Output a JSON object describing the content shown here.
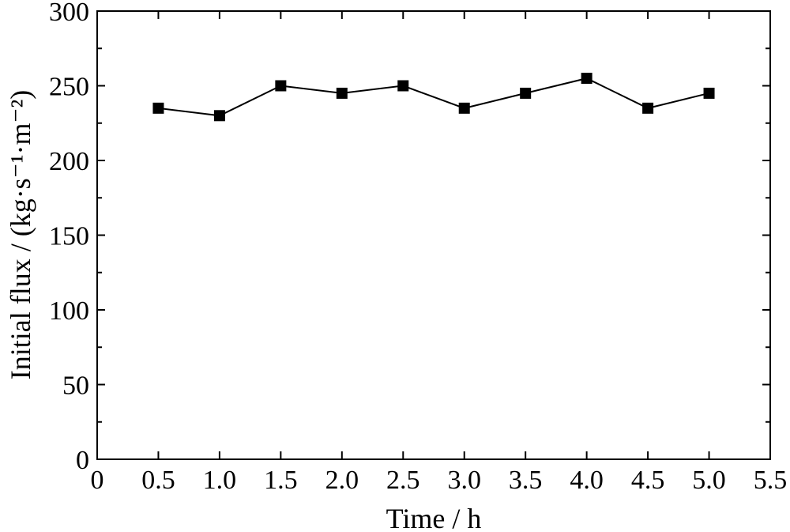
{
  "chart_data": {
    "type": "line",
    "xlabel": "Time / h",
    "ylabel": "Initial flux / (kg·s⁻¹·m⁻²)",
    "xlim": [
      0,
      5.5
    ],
    "ylim": [
      0,
      300
    ],
    "x_ticks": [
      "0",
      "0.5",
      "1.0",
      "1.5",
      "2.0",
      "2.5",
      "3.0",
      "3.5",
      "4.0",
      "4.5",
      "5.0",
      "5.5"
    ],
    "y_ticks": [
      "0",
      "50",
      "100",
      "150",
      "200",
      "250",
      "300"
    ],
    "grid": false,
    "marker": "square",
    "colors": {
      "line": "#000000",
      "marker": "#000000"
    },
    "series": [
      {
        "x": [
          0.5,
          1.0,
          1.5,
          2.0,
          2.5,
          3.0,
          3.5,
          4.0,
          4.5,
          5.0
        ],
        "y": [
          235,
          230,
          250,
          245,
          250,
          235,
          245,
          255,
          235,
          245
        ]
      }
    ]
  }
}
